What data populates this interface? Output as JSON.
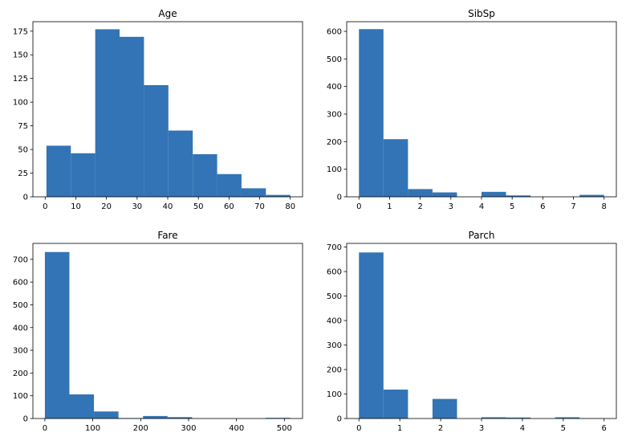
{
  "chart_data": [
    {
      "type": "bar",
      "title": "Age",
      "xlim": [
        -4,
        84
      ],
      "ylim": [
        0,
        185
      ],
      "xticks": [
        0,
        10,
        20,
        30,
        40,
        50,
        60,
        70,
        80
      ],
      "yticks": [
        0,
        25,
        50,
        75,
        100,
        125,
        150,
        175
      ],
      "bin_edges": [
        0.42,
        8.38,
        16.34,
        24.29,
        32.25,
        40.21,
        48.17,
        56.13,
        64.08,
        72.04,
        80.0
      ],
      "values": [
        54,
        46,
        177,
        169,
        118,
        70,
        45,
        24,
        9,
        2
      ],
      "color": "#3274b5"
    },
    {
      "type": "bar",
      "title": "SibSp",
      "xlim": [
        -0.4,
        8.4
      ],
      "ylim": [
        0,
        635
      ],
      "xticks": [
        0,
        1,
        2,
        3,
        4,
        5,
        6,
        7,
        8
      ],
      "yticks": [
        0,
        100,
        200,
        300,
        400,
        500,
        600
      ],
      "bin_edges": [
        0,
        0.8,
        1.6,
        2.4,
        3.2,
        4.0,
        4.8,
        5.6,
        6.4,
        7.2,
        8.0
      ],
      "values": [
        608,
        209,
        28,
        16,
        0,
        18,
        5,
        0,
        0,
        7
      ],
      "color": "#3274b5"
    },
    {
      "type": "bar",
      "title": "Fare",
      "xlim": [
        -25,
        538
      ],
      "ylim": [
        0,
        770
      ],
      "xticks": [
        0,
        100,
        200,
        300,
        400,
        500
      ],
      "yticks": [
        0,
        100,
        200,
        300,
        400,
        500,
        600,
        700
      ],
      "bin_edges": [
        0,
        51.23,
        102.47,
        153.7,
        204.93,
        256.17,
        307.4,
        358.63,
        409.86,
        461.1,
        512.33
      ],
      "values": [
        732,
        106,
        31,
        2,
        11,
        6,
        0,
        0,
        0,
        3
      ],
      "color": "#3274b5"
    },
    {
      "type": "bar",
      "title": "Parch",
      "xlim": [
        -0.3,
        6.3
      ],
      "ylim": [
        0,
        715
      ],
      "xticks": [
        0,
        1,
        2,
        3,
        4,
        5,
        6
      ],
      "yticks": [
        0,
        100,
        200,
        300,
        400,
        500,
        600,
        700
      ],
      "bin_edges": [
        0,
        0.6,
        1.2,
        1.8,
        2.4,
        3.0,
        3.6,
        4.2,
        4.8,
        5.4,
        6.0
      ],
      "values": [
        678,
        118,
        0,
        80,
        0,
        5,
        4,
        0,
        5,
        1
      ],
      "color": "#3274b5"
    }
  ]
}
